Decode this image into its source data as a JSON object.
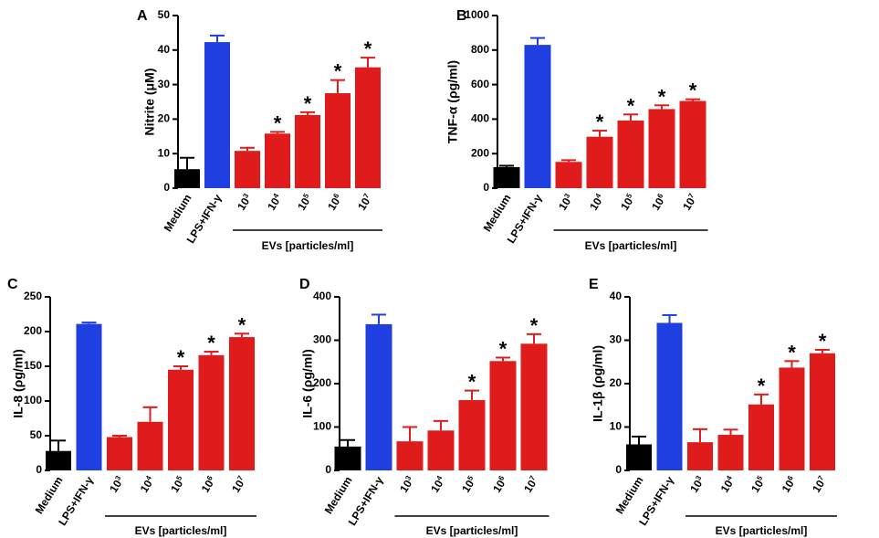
{
  "chart_data": [
    {
      "type": "bar",
      "panel": "A",
      "ylabel": "Nitrite (μM)",
      "ylim": [
        0,
        50
      ],
      "yticks": [
        0,
        10,
        20,
        30,
        40,
        50
      ],
      "categories": [
        "Medium",
        "LPS+IFN-γ",
        "10",
        "10",
        "10",
        "10",
        "10"
      ],
      "category_exponents": [
        "",
        "",
        "3",
        "4",
        "5",
        "6",
        "7"
      ],
      "values": [
        5.5,
        42.3,
        10.8,
        15.8,
        21.2,
        27.5,
        35.0
      ],
      "errors": [
        3.3,
        1.9,
        0.9,
        0.5,
        0.8,
        3.8,
        2.8
      ],
      "colors": [
        "#000000",
        "#1f3fe0",
        "#e01b1b",
        "#e01b1b",
        "#e01b1b",
        "#e01b1b",
        "#e01b1b"
      ],
      "significant": [
        false,
        false,
        false,
        true,
        true,
        true,
        true
      ],
      "significance_marker": "*",
      "group_label": "EVs [particles/ml]"
    },
    {
      "type": "bar",
      "panel": "B",
      "ylabel": "TNF-α (ρg/ml)",
      "ylim": [
        0,
        1000
      ],
      "yticks": [
        0,
        200,
        400,
        600,
        800,
        1000
      ],
      "categories": [
        "Medium",
        "LPS+IFN-γ",
        "10",
        "10",
        "10",
        "10",
        "10"
      ],
      "category_exponents": [
        "",
        "",
        "3",
        "4",
        "5",
        "6",
        "7"
      ],
      "values": [
        122,
        830,
        152,
        298,
        392,
        458,
        505
      ],
      "errors": [
        8,
        40,
        10,
        35,
        35,
        22,
        10
      ],
      "colors": [
        "#000000",
        "#1f3fe0",
        "#e01b1b",
        "#e01b1b",
        "#e01b1b",
        "#e01b1b",
        "#e01b1b"
      ],
      "significant": [
        false,
        false,
        false,
        true,
        true,
        true,
        true
      ],
      "significance_marker": "*",
      "group_label": "EVs [particles/ml]"
    },
    {
      "type": "bar",
      "panel": "C",
      "ylabel": "IL-8 (ρg/ml)",
      "ylim": [
        0,
        250
      ],
      "yticks": [
        0,
        50,
        100,
        150,
        200,
        250
      ],
      "categories": [
        "Medium",
        "LPS+IFN-γ",
        "10",
        "10",
        "10",
        "10",
        "10"
      ],
      "category_exponents": [
        "",
        "",
        "3",
        "4",
        "5",
        "6",
        "7"
      ],
      "values": [
        28,
        211,
        48,
        70,
        145,
        166,
        192
      ],
      "errors": [
        15,
        2,
        2,
        21,
        5,
        5,
        5
      ],
      "colors": [
        "#000000",
        "#1f3fe0",
        "#e01b1b",
        "#e01b1b",
        "#e01b1b",
        "#e01b1b",
        "#e01b1b"
      ],
      "significant": [
        false,
        false,
        false,
        false,
        true,
        true,
        true
      ],
      "significance_marker": "*",
      "group_label": "EVs [particles/ml]"
    },
    {
      "type": "bar",
      "panel": "D",
      "ylabel": "IL-6 (ρg/ml)",
      "ylim": [
        0,
        400
      ],
      "yticks": [
        0,
        100,
        200,
        300,
        400
      ],
      "categories": [
        "Medium",
        "LPS+IFN-γ",
        "10",
        "10",
        "10",
        "10",
        "10"
      ],
      "category_exponents": [
        "",
        "",
        "3",
        "4",
        "5",
        "6",
        "7"
      ],
      "values": [
        55,
        337,
        67,
        92,
        162,
        252,
        292
      ],
      "errors": [
        15,
        22,
        33,
        22,
        22,
        8,
        22
      ],
      "colors": [
        "#000000",
        "#1f3fe0",
        "#e01b1b",
        "#e01b1b",
        "#e01b1b",
        "#e01b1b",
        "#e01b1b"
      ],
      "significant": [
        false,
        false,
        false,
        false,
        true,
        true,
        true
      ],
      "significance_marker": "*",
      "group_label": "EVs [particles/ml]"
    },
    {
      "type": "bar",
      "panel": "E",
      "ylabel": "IL-1β (ρg/ml)",
      "ylim": [
        0,
        40
      ],
      "yticks": [
        0,
        10,
        20,
        30,
        40
      ],
      "categories": [
        "Medium",
        "LPS+IFN-γ",
        "10",
        "10",
        "10",
        "10",
        "10"
      ],
      "category_exponents": [
        "",
        "",
        "3",
        "4",
        "5",
        "6",
        "7"
      ],
      "values": [
        6,
        34,
        6.5,
        8.2,
        15.2,
        23.7,
        27
      ],
      "errors": [
        1.8,
        1.8,
        3.0,
        1.2,
        2.3,
        1.5,
        0.8
      ],
      "colors": [
        "#000000",
        "#1f3fe0",
        "#e01b1b",
        "#e01b1b",
        "#e01b1b",
        "#e01b1b",
        "#e01b1b"
      ],
      "significant": [
        false,
        false,
        false,
        false,
        true,
        true,
        true
      ],
      "significance_marker": "*",
      "group_label": "EVs [particles/ml]"
    }
  ]
}
